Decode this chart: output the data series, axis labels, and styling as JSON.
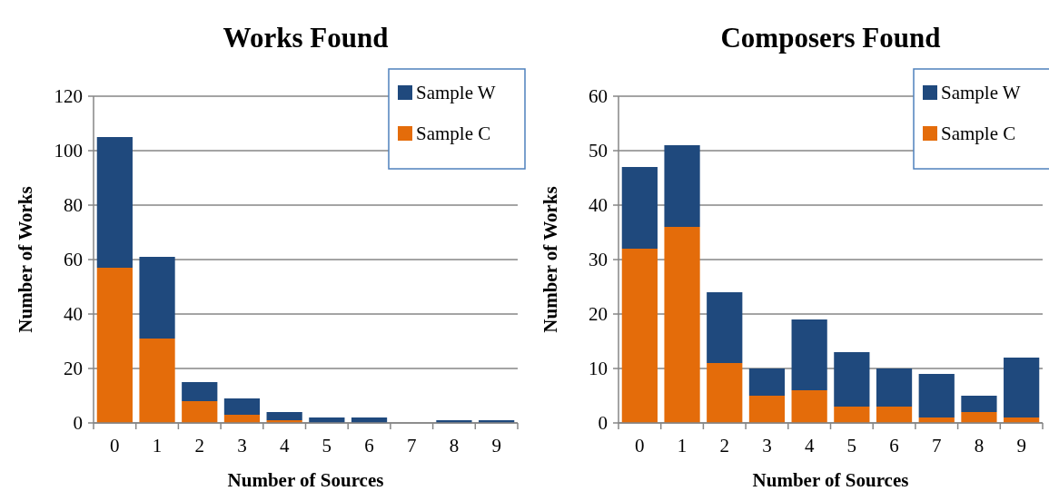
{
  "chart_data": [
    {
      "type": "bar",
      "title": "Works Found",
      "xlabel": "Number of Sources",
      "ylabel": "Number of Works",
      "categories": [
        "0",
        "1",
        "2",
        "3",
        "4",
        "5",
        "6",
        "7",
        "8",
        "9"
      ],
      "stacked": true,
      "ylim": [
        0,
        120
      ],
      "yticks": [
        0,
        20,
        40,
        60,
        80,
        100,
        120
      ],
      "grid": "y",
      "legend": "top right",
      "series": [
        {
          "name": "Sample C",
          "color": "#e46c0a",
          "values": [
            57,
            31,
            8,
            3,
            1,
            0,
            0,
            0,
            0,
            0
          ]
        },
        {
          "name": "Sample W",
          "color": "#1f497d",
          "values": [
            48,
            30,
            7,
            6,
            3,
            2,
            2,
            0,
            1,
            1
          ]
        }
      ]
    },
    {
      "type": "bar",
      "title": "Composers Found",
      "xlabel": "Number of Sources",
      "ylabel": "Number of Works",
      "categories": [
        "0",
        "1",
        "2",
        "3",
        "4",
        "5",
        "6",
        "7",
        "8",
        "9"
      ],
      "stacked": true,
      "ylim": [
        0,
        60
      ],
      "yticks": [
        0,
        10,
        20,
        30,
        40,
        50,
        60
      ],
      "grid": "y",
      "legend": "top right",
      "series": [
        {
          "name": "Sample C",
          "color": "#e46c0a",
          "values": [
            32,
            36,
            11,
            5,
            6,
            3,
            3,
            1,
            2,
            1
          ]
        },
        {
          "name": "Sample W",
          "color": "#1f497d",
          "values": [
            15,
            15,
            13,
            5,
            13,
            10,
            7,
            8,
            3,
            11
          ]
        }
      ]
    }
  ]
}
